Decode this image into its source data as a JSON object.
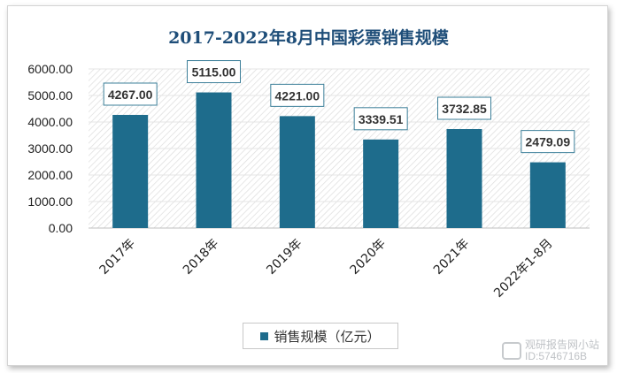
{
  "chart_data": {
    "type": "bar",
    "title": "2017-2022年8月中国彩票销售规模",
    "categories": [
      "2017年",
      "2018年",
      "2019年",
      "2020年",
      "2021年",
      "2022年1-8月"
    ],
    "series": [
      {
        "name": "销售规模（亿元）",
        "values": [
          4267.0,
          5115.0,
          4221.0,
          3339.51,
          3732.85,
          2479.09
        ]
      }
    ],
    "data_labels": [
      "4267.00",
      "5115.00",
      "4221.00",
      "3339.51",
      "3732.85",
      "2479.09"
    ],
    "yticks": [
      "0.00",
      "1000.00",
      "2000.00",
      "3000.00",
      "4000.00",
      "5000.00",
      "6000.00"
    ],
    "ylim": [
      0,
      6000
    ],
    "grid": true,
    "legend_position": "bottom",
    "bar_color": "#1e6c8c",
    "title_color": "#1f4e79"
  },
  "watermark": {
    "line1": "观研报告网小站",
    "line2": "ID:5746716B"
  }
}
